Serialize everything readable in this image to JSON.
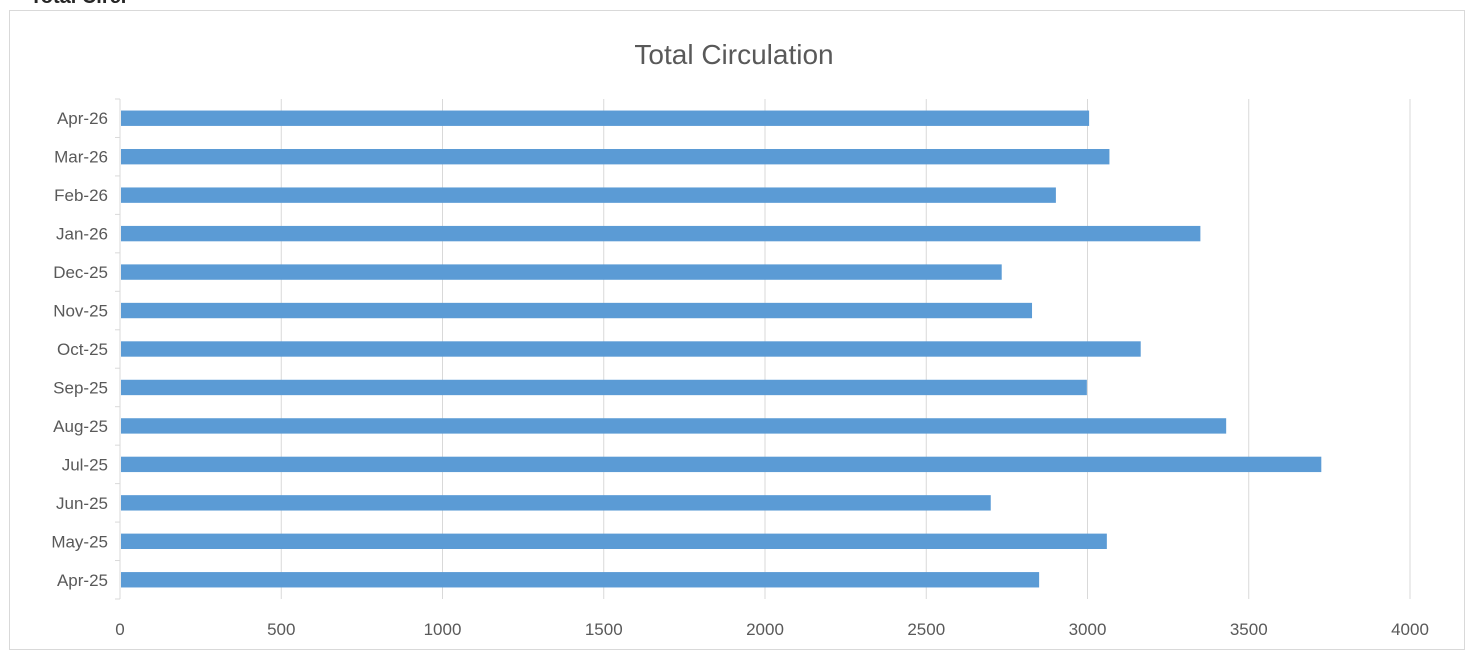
{
  "overflow_text": "Total Circ.",
  "chart_data": {
    "type": "bar",
    "orientation": "horizontal",
    "title": "Total Circulation",
    "xlabel": "",
    "ylabel": "",
    "categories": [
      "Apr-25",
      "May-25",
      "Jun-25",
      "Jul-25",
      "Aug-25",
      "Sep-25",
      "Oct-25",
      "Nov-25",
      "Dec-25",
      "Jan-26",
      "Feb-26",
      "Mar-26",
      "Apr-26"
    ],
    "values": [
      2850,
      3060,
      2700,
      3725,
      3430,
      2998,
      3165,
      2828,
      2734,
      3350,
      2902,
      3068,
      3005
    ],
    "xlim": [
      0,
      4000
    ],
    "xticks": [
      0,
      500,
      1000,
      1500,
      2000,
      2500,
      3000,
      3500,
      4000
    ],
    "grid": "vertical",
    "legend": "none",
    "bar_color": "#5b9bd5",
    "grid_color": "#d9d9d9"
  }
}
